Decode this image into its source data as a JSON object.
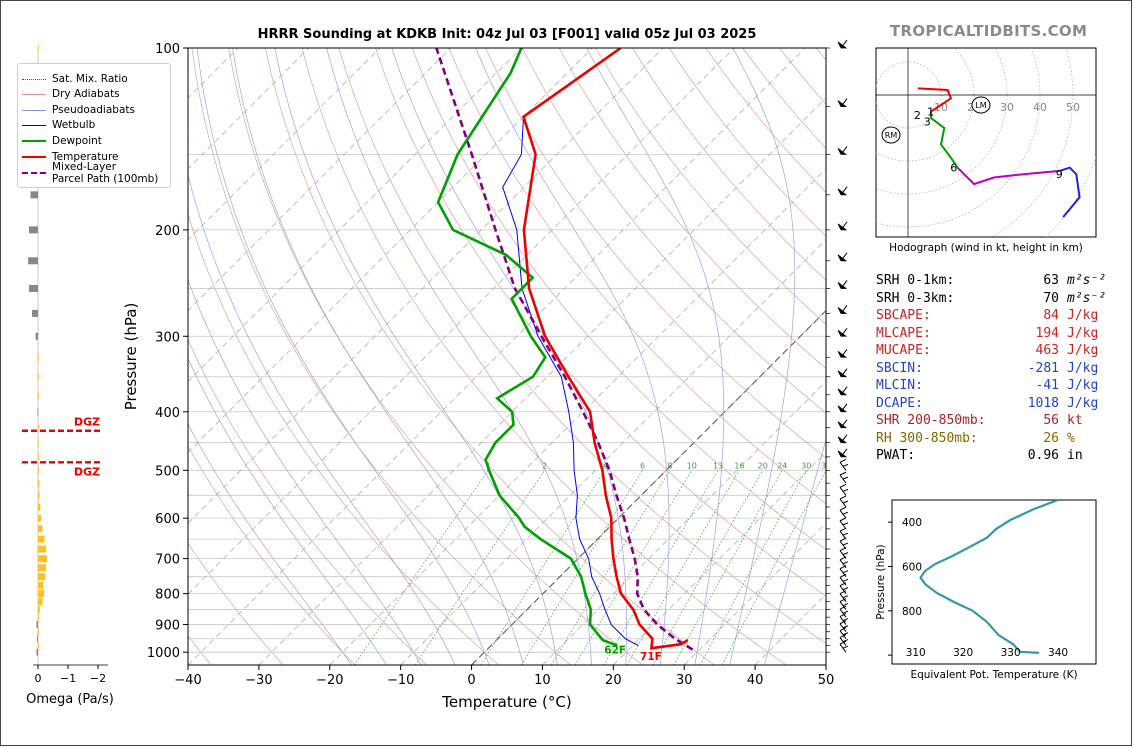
{
  "brand": "TROPICALTIDBITS.COM",
  "title": "HRRR Sounding at KDKB Init: 04z Jul 03 [F001] valid 05z Jul 03 2025",
  "chart_data": [
    {
      "type": "skew-t",
      "name_printed": "",
      "xlabel": "Temperature (°C)",
      "ylabel": "Pressure (hPa)",
      "xlim": [
        -40,
        50
      ],
      "ylim": [
        1050,
        100
      ],
      "x_ticks": [
        "−40",
        "−30",
        "−20",
        "−10",
        "0",
        "10",
        "20",
        "30",
        "40",
        "50"
      ],
      "y_ticks": [
        "100",
        "200",
        "300",
        "400",
        "500",
        "600",
        "700",
        "800",
        "900",
        "1000"
      ],
      "mixing_ratio_labels": [
        "1",
        "2",
        "4",
        "6",
        "8",
        "10",
        "13",
        "16",
        "20",
        "24",
        "30",
        "36"
      ],
      "surface_labels": {
        "dewpoint": "62F",
        "temperature": "71F"
      },
      "colors": {
        "temperature": "#ee0000",
        "dewpoint": "#00a000",
        "wetbulb": "#0000ee",
        "parcel": "#800080"
      },
      "temperature": [
        [
          955,
          27
        ],
        [
          970,
          26.6
        ],
        [
          985,
          23
        ],
        [
          950,
          21.8
        ],
        [
          900,
          18
        ],
        [
          850,
          15
        ],
        [
          800,
          11
        ],
        [
          750,
          8
        ],
        [
          700,
          5
        ],
        [
          650,
          2
        ],
        [
          600,
          -1
        ],
        [
          550,
          -5
        ],
        [
          500,
          -9
        ],
        [
          450,
          -14
        ],
        [
          400,
          -19
        ],
        [
          350,
          -27
        ],
        [
          300,
          -36
        ],
        [
          250,
          -45
        ],
        [
          200,
          -54
        ],
        [
          150,
          -63
        ],
        [
          130,
          -70
        ],
        [
          100,
          -66
        ]
      ],
      "dewpoint": [
        [
          975,
          17.8
        ],
        [
          955,
          15
        ],
        [
          920,
          12.5
        ],
        [
          900,
          11
        ],
        [
          850,
          9
        ],
        [
          800,
          6
        ],
        [
          750,
          3
        ],
        [
          700,
          -1
        ],
        [
          650,
          -8
        ],
        [
          620,
          -12
        ],
        [
          600,
          -14
        ],
        [
          550,
          -20
        ],
        [
          500,
          -25
        ],
        [
          480,
          -27
        ],
        [
          450,
          -28
        ],
        [
          420,
          -28
        ],
        [
          400,
          -30
        ],
        [
          380,
          -34
        ],
        [
          350,
          -32
        ],
        [
          325,
          -33
        ],
        [
          300,
          -38
        ],
        [
          260,
          -46
        ],
        [
          240,
          -46
        ],
        [
          220,
          -53
        ],
        [
          200,
          -64
        ],
        [
          180,
          -70
        ],
        [
          150,
          -74
        ],
        [
          110,
          -78
        ],
        [
          100,
          -80
        ]
      ],
      "wetbulb": [
        [
          975,
          20.8
        ],
        [
          950,
          18
        ],
        [
          900,
          14
        ],
        [
          850,
          11
        ],
        [
          800,
          8
        ],
        [
          750,
          4.5
        ],
        [
          700,
          1.5
        ],
        [
          650,
          -2.5
        ],
        [
          600,
          -6
        ],
        [
          550,
          -9
        ],
        [
          500,
          -13
        ],
        [
          450,
          -17
        ],
        [
          400,
          -22
        ],
        [
          350,
          -28
        ],
        [
          300,
          -37
        ],
        [
          250,
          -46
        ],
        [
          200,
          -55
        ],
        [
          170,
          -63
        ],
        [
          150,
          -65
        ],
        [
          130,
          -70
        ],
        [
          100,
          -66
        ]
      ],
      "parcel": [
        [
          990,
          29
        ],
        [
          950,
          25
        ],
        [
          900,
          20.5
        ],
        [
          850,
          16.5
        ],
        [
          800,
          13.3
        ],
        [
          750,
          11
        ],
        [
          700,
          8
        ],
        [
          650,
          4.5
        ],
        [
          600,
          0.8
        ],
        [
          550,
          -3.5
        ],
        [
          500,
          -8
        ],
        [
          450,
          -13.5
        ],
        [
          400,
          -20
        ],
        [
          350,
          -27.5
        ],
        [
          300,
          -36.5
        ],
        [
          250,
          -47
        ],
        [
          200,
          -58
        ],
        [
          150,
          -72
        ],
        [
          100,
          -92
        ]
      ],
      "wind_levels_hpa": [
        1000,
        975,
        950,
        925,
        900,
        875,
        850,
        825,
        800,
        775,
        750,
        725,
        700,
        675,
        650,
        625,
        600,
        575,
        550,
        525,
        500,
        475,
        450,
        425,
        400,
        375,
        350,
        325,
        300,
        275,
        250,
        225,
        200,
        175,
        150,
        125,
        100
      ]
    },
    {
      "type": "bar",
      "xlabel": "Omega (Pa/s)",
      "x_ticks": [
        "0",
        "−1",
        "−2"
      ],
      "dgz_label": "DGZ",
      "dgz_pressures_hpa": [
        430,
        485
      ],
      "levels_hpa": [
        1000,
        975,
        950,
        925,
        900,
        875,
        850,
        825,
        800,
        775,
        750,
        725,
        700,
        675,
        650,
        625,
        600,
        575,
        550,
        525,
        500,
        475,
        450,
        425,
        400,
        375,
        350,
        325,
        300,
        275,
        250,
        225,
        200,
        175,
        150,
        125,
        100
      ],
      "values": [
        -0.05,
        0,
        -0.03,
        0,
        -0.05,
        0,
        0.06,
        0.15,
        0.2,
        0.17,
        0.24,
        0.27,
        0.3,
        0.27,
        0.22,
        0.15,
        0.1,
        0.08,
        0.05,
        0.04,
        0.03,
        0.02,
        0,
        0,
        -0.02,
        0,
        0.03,
        0.02,
        -0.08,
        -0.2,
        -0.3,
        -0.33,
        -0.3,
        -0.25,
        -0.15,
        -0.05,
        0.02
      ]
    },
    {
      "type": "line",
      "caption": "Hodograph (wind in kt, height in km)",
      "ring_labels": [
        "10",
        "20",
        "30",
        "40",
        "50"
      ],
      "markers": {
        "left": "RM",
        "right": "LM"
      },
      "height_labels": [
        {
          "label": "2",
          "u": 3,
          "v": -6
        },
        {
          "label": "1",
          "u": 7,
          "v": -5
        },
        {
          "label": "3",
          "u": 6,
          "v": -8
        },
        {
          "label": "6",
          "u": 14,
          "v": -22
        },
        {
          "label": "9",
          "u": 46,
          "v": -24
        }
      ],
      "segments": [
        {
          "color": "#ee0000",
          "points": [
            [
              3,
              2
            ],
            [
              12,
              1.5
            ],
            [
              13,
              -1
            ],
            [
              7,
              -5
            ]
          ]
        },
        {
          "color": "#00a000",
          "points": [
            [
              7,
              -5
            ],
            [
              7,
              -7
            ],
            [
              11,
              -10
            ],
            [
              10,
              -15
            ],
            [
              13,
              -19
            ],
            [
              15,
              -22
            ]
          ]
        },
        {
          "color": "#c000c0",
          "points": [
            [
              15,
              -22
            ],
            [
              20,
              -27
            ],
            [
              26,
              -25
            ],
            [
              35,
              -24
            ],
            [
              46,
              -23
            ]
          ]
        },
        {
          "color": "#2020ee",
          "points": [
            [
              46,
              -23
            ],
            [
              49,
              -22
            ],
            [
              51,
              -24
            ],
            [
              52,
              -31
            ],
            [
              47,
              -37
            ]
          ]
        }
      ]
    },
    {
      "type": "line",
      "xlabel": "Equivalent Pot. Temperature (K)",
      "ylabel": "Pressure (hPa)",
      "x_ticks": [
        "310",
        "320",
        "330",
        "340"
      ],
      "y_ticks": [
        "400",
        "600",
        "800"
      ],
      "xlim": [
        305,
        348
      ],
      "ylim": [
        1040,
        300
      ],
      "color": "#3399aa",
      "points": [
        [
          336,
          990
        ],
        [
          332,
          985
        ],
        [
          330.5,
          950
        ],
        [
          327.5,
          910
        ],
        [
          325,
          850
        ],
        [
          322,
          800
        ],
        [
          318,
          760
        ],
        [
          314.5,
          720
        ],
        [
          312,
          680
        ],
        [
          311,
          650
        ],
        [
          312,
          620
        ],
        [
          314,
          590
        ],
        [
          318,
          550
        ],
        [
          322,
          505
        ],
        [
          325,
          470
        ],
        [
          327,
          430
        ],
        [
          330,
          390
        ],
        [
          335,
          340
        ],
        [
          340,
          300
        ]
      ]
    }
  ],
  "legend": [
    {
      "label": "Sat. Mix. Ratio",
      "color": "#555555",
      "style": "dotted"
    },
    {
      "label": "Dry Adiabats",
      "color": "#e09090",
      "style": "solid"
    },
    {
      "label": "Pseudoadiabats",
      "color": "#9090e0",
      "style": "solid"
    },
    {
      "label": "Wetbulb",
      "color": "#0000ee",
      "style": "solid"
    },
    {
      "label": "Dewpoint",
      "color": "#00a000",
      "style": "thick"
    },
    {
      "label": "Temperature",
      "color": "#ee0000",
      "style": "thick"
    },
    {
      "label": "Mixed-Layer\nParcel Path (100mb)",
      "color": "#800080",
      "style": "dashed"
    }
  ],
  "indices": [
    {
      "label": "SRH 0-1km:",
      "value": "63",
      "unit": "m²s⁻²",
      "color": "#000000"
    },
    {
      "label": "SRH 0-3km:",
      "value": "70",
      "unit": "m²s⁻²",
      "color": "#000000"
    },
    {
      "label": "SBCAPE:",
      "value": "84",
      "unit": "J/kg",
      "color": "#cc2222"
    },
    {
      "label": "MLCAPE:",
      "value": "194",
      "unit": "J/kg",
      "color": "#cc2222"
    },
    {
      "label": "MUCAPE:",
      "value": "463",
      "unit": "J/kg",
      "color": "#cc2222"
    },
    {
      "label": "SBCIN:",
      "value": "-281",
      "unit": "J/kg",
      "color": "#2244cc"
    },
    {
      "label": "MLCIN:",
      "value": "-41",
      "unit": "J/kg",
      "color": "#2244cc"
    },
    {
      "label": "DCAPE:",
      "value": "1018",
      "unit": "J/kg",
      "color": "#2244cc"
    },
    {
      "label": "SHR 200-850mb:",
      "value": "56",
      "unit": "kt",
      "color": "#aa2222"
    },
    {
      "label": "RH 300-850mb:",
      "value": "26",
      "unit": "%",
      "color": "#886600"
    },
    {
      "label": "PWAT:",
      "value": "0.96",
      "unit": "in",
      "color": "#000000"
    }
  ]
}
